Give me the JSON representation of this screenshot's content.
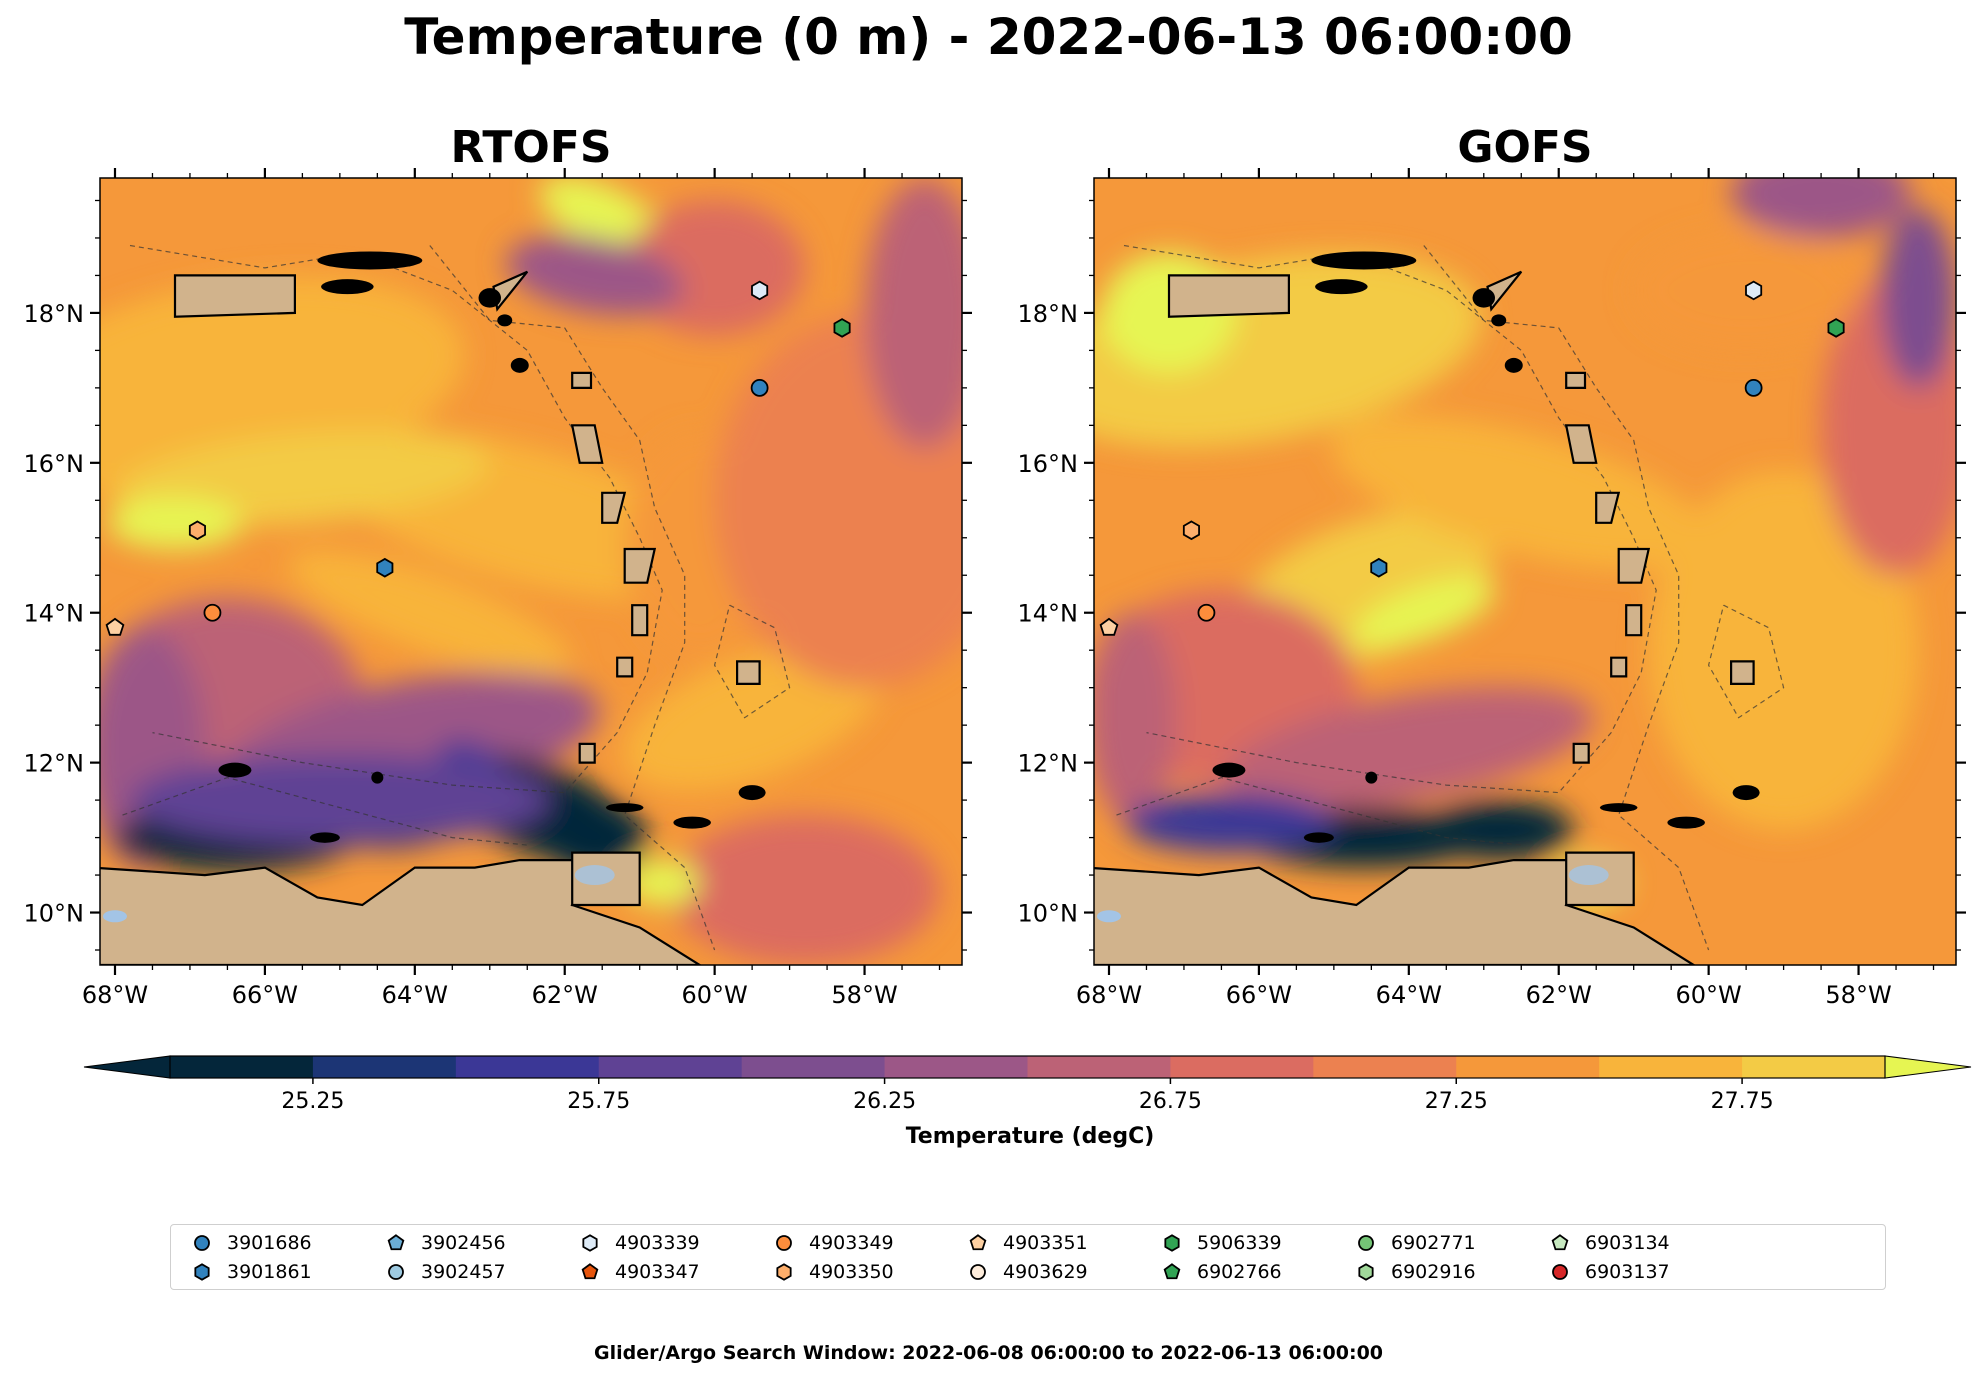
{
  "title": "Temperature (0 m) - 2022-06-13 06:00:00",
  "panels": [
    {
      "title": "RTOFS",
      "variant": "rtofs"
    },
    {
      "title": "GOFS",
      "variant": "gofs"
    }
  ],
  "axes": {
    "lon_ticks": [
      -68,
      -66,
      -64,
      -62,
      -60,
      -58
    ],
    "lon_labels": [
      "68°W",
      "66°W",
      "64°W",
      "62°W",
      "60°W",
      "58°W"
    ],
    "lat_ticks": [
      10,
      12,
      14,
      16,
      18
    ],
    "lat_labels": [
      "10°N",
      "12°N",
      "14°N",
      "16°N",
      "18°N"
    ],
    "lon_range": [
      -68.2,
      -56.7
    ],
    "lat_range": [
      9.3,
      19.8
    ]
  },
  "colorbar": {
    "label": "Temperature (degC)",
    "range": [
      25.0,
      28.0
    ],
    "tick_values": [
      25.25,
      25.75,
      26.25,
      26.75,
      27.25,
      27.75
    ],
    "tick_labels": [
      "25.25",
      "25.75",
      "26.25",
      "26.75",
      "27.25",
      "27.75"
    ],
    "colors": [
      "#04263a",
      "#1c3575",
      "#3b3796",
      "#5f4294",
      "#7d4e8f",
      "#9c5787",
      "#bc6276",
      "#db6c61",
      "#ec8150",
      "#f5983a",
      "#f8b43b",
      "#f3cb45"
    ],
    "extend_low_color": "#04263a",
    "extend_high_color": "#e6f552"
  },
  "land_color": "#d1b38c",
  "lake_color": "#a3c4e6",
  "chart_data": {
    "type": "map",
    "region": {
      "lon": [
        -68.2,
        -56.7
      ],
      "lat": [
        9.3,
        19.8
      ]
    },
    "markers": [
      {
        "id": "4903339",
        "lon": -59.4,
        "lat": 18.3,
        "color": "#deebf7",
        "shape": "hexagon"
      },
      {
        "id": "5906339",
        "lon": -58.3,
        "lat": 17.8,
        "color": "#31a354",
        "shape": "hexagon"
      },
      {
        "id": "3901686",
        "lon": -59.4,
        "lat": 17.0,
        "color": "#3182bd",
        "shape": "circle"
      },
      {
        "id": "4903350",
        "lon": -66.9,
        "lat": 15.1,
        "color": "#fdae6b",
        "shape": "hexagon"
      },
      {
        "id": "3901861",
        "lon": -64.4,
        "lat": 14.6,
        "color": "#3182bd",
        "shape": "hexagon"
      },
      {
        "id": "4903349",
        "lon": -66.7,
        "lat": 14.0,
        "color": "#fd8d3c",
        "shape": "circle"
      },
      {
        "id": "4903351",
        "lon": -68.0,
        "lat": 13.8,
        "color": "#fdd0a2",
        "shape": "pentagon"
      }
    ]
  },
  "legend": [
    {
      "label": "3901686",
      "color": "#3182bd",
      "shape": "circle"
    },
    {
      "label": "3901861",
      "color": "#3182bd",
      "shape": "hexagon"
    },
    {
      "label": "3902456",
      "color": "#6baed6",
      "shape": "pentagon"
    },
    {
      "label": "3902457",
      "color": "#9ecae1",
      "shape": "circle"
    },
    {
      "label": "4903339",
      "color": "#deebf7",
      "shape": "hexagon"
    },
    {
      "label": "4903347",
      "color": "#e6550d",
      "shape": "pentagon"
    },
    {
      "label": "4903349",
      "color": "#fd8d3c",
      "shape": "circle"
    },
    {
      "label": "4903350",
      "color": "#fdae6b",
      "shape": "hexagon"
    },
    {
      "label": "4903351",
      "color": "#fdd0a2",
      "shape": "pentagon"
    },
    {
      "label": "4903629",
      "color": "#feeddc",
      "shape": "circle"
    },
    {
      "label": "5906339",
      "color": "#31a354",
      "shape": "hexagon"
    },
    {
      "label": "6902766",
      "color": "#31a354",
      "shape": "pentagon"
    },
    {
      "label": "6902771",
      "color": "#74c476",
      "shape": "circle"
    },
    {
      "label": "6902916",
      "color": "#a1d99b",
      "shape": "hexagon"
    },
    {
      "label": "6903134",
      "color": "#c7e9c0",
      "shape": "pentagon"
    },
    {
      "label": "6903137",
      "color": "#d62728",
      "shape": "circle"
    }
  ],
  "footer": "Glider/Argo Search Window: 2022-06-08 06:00:00 to 2022-06-13 06:00:00"
}
